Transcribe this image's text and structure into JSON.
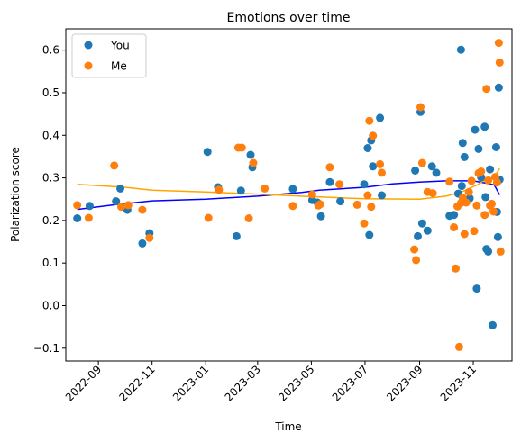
{
  "chart_data": {
    "type": "scatter",
    "title": "Emotions over time",
    "xlabel": "Time",
    "ylabel": "Polarization score",
    "x_type": "date",
    "xlim": [
      "2022-07-26",
      "2023-12-15"
    ],
    "ylim": [
      -0.13,
      0.65
    ],
    "x_ticks": [
      "2022-09-01",
      "2022-11-01",
      "2023-01-01",
      "2023-03-01",
      "2023-05-01",
      "2023-07-01",
      "2023-09-01",
      "2023-11-01"
    ],
    "x_tick_labels": [
      "2022-09",
      "2022-11",
      "2023-01",
      "2023-03",
      "2023-05",
      "2023-07",
      "2023-09",
      "2023-11"
    ],
    "y_ticks": [
      -0.1,
      0.0,
      0.1,
      0.2,
      0.3,
      0.4,
      0.5,
      0.6
    ],
    "y_tick_labels": [
      "−0.1",
      "0.0",
      "0.1",
      "0.2",
      "0.3",
      "0.4",
      "0.5",
      "0.6"
    ],
    "grid": false,
    "legend_position": "top-left",
    "series": [
      {
        "name": "You",
        "color": "#1f77b4",
        "marker": "circle",
        "points": [
          [
            "2022-08-08",
            0.205
          ],
          [
            "2022-08-22",
            0.234
          ],
          [
            "2022-09-21",
            0.245
          ],
          [
            "2022-09-26",
            0.275
          ],
          [
            "2022-10-04",
            0.225
          ],
          [
            "2022-10-21",
            0.146
          ],
          [
            "2022-10-29",
            0.17
          ],
          [
            "2023-01-03",
            0.361
          ],
          [
            "2023-01-15",
            0.278
          ],
          [
            "2023-02-05",
            0.163
          ],
          [
            "2023-02-10",
            0.27
          ],
          [
            "2023-02-21",
            0.354
          ],
          [
            "2023-02-23",
            0.325
          ],
          [
            "2023-04-10",
            0.274
          ],
          [
            "2023-05-02",
            0.248
          ],
          [
            "2023-05-08",
            0.242
          ],
          [
            "2023-05-12",
            0.21
          ],
          [
            "2023-05-22",
            0.29
          ],
          [
            "2023-06-03",
            0.245
          ],
          [
            "2023-06-30",
            0.285
          ],
          [
            "2023-07-04",
            0.37
          ],
          [
            "2023-07-06",
            0.166
          ],
          [
            "2023-07-08",
            0.388
          ],
          [
            "2023-07-10",
            0.327
          ],
          [
            "2023-07-18",
            0.441
          ],
          [
            "2023-07-20",
            0.259
          ],
          [
            "2023-08-27",
            0.317
          ],
          [
            "2023-08-30",
            0.163
          ],
          [
            "2023-09-02",
            0.455
          ],
          [
            "2023-09-04",
            0.193
          ],
          [
            "2023-09-10",
            0.176
          ],
          [
            "2023-09-15",
            0.327
          ],
          [
            "2023-09-20",
            0.312
          ],
          [
            "2023-10-05",
            0.211
          ],
          [
            "2023-10-10",
            0.213
          ],
          [
            "2023-10-15",
            0.263
          ],
          [
            "2023-10-18",
            0.601
          ],
          [
            "2023-10-19",
            0.281
          ],
          [
            "2023-10-20",
            0.382
          ],
          [
            "2023-10-22",
            0.349
          ],
          [
            "2023-10-28",
            0.252
          ],
          [
            "2023-11-03",
            0.413
          ],
          [
            "2023-11-05",
            0.04
          ],
          [
            "2023-11-07",
            0.368
          ],
          [
            "2023-11-10",
            0.301
          ],
          [
            "2023-11-14",
            0.42
          ],
          [
            "2023-11-15",
            0.255
          ],
          [
            "2023-11-16",
            0.133
          ],
          [
            "2023-11-18",
            0.127
          ],
          [
            "2023-11-20",
            0.32
          ],
          [
            "2023-11-23",
            -0.046
          ],
          [
            "2023-11-27",
            0.372
          ],
          [
            "2023-11-28",
            0.22
          ],
          [
            "2023-11-29",
            0.161
          ],
          [
            "2023-11-30",
            0.512
          ],
          [
            "2023-12-01",
            0.296
          ]
        ],
        "trend": [
          [
            "2022-08-08",
            0.226
          ],
          [
            "2022-09-20",
            0.237
          ],
          [
            "2022-11-01",
            0.246
          ],
          [
            "2023-01-01",
            0.25
          ],
          [
            "2023-03-01",
            0.257
          ],
          [
            "2023-04-20",
            0.266
          ],
          [
            "2023-05-10",
            0.271
          ],
          [
            "2023-07-01",
            0.278
          ],
          [
            "2023-08-01",
            0.286
          ],
          [
            "2023-09-01",
            0.29
          ],
          [
            "2023-10-01",
            0.293
          ],
          [
            "2023-11-01",
            0.293
          ],
          [
            "2023-11-20",
            0.286
          ],
          [
            "2023-11-25",
            0.283
          ],
          [
            "2023-12-01",
            0.26
          ]
        ]
      },
      {
        "name": "Me",
        "color": "#ff7f0e",
        "marker": "circle",
        "points": [
          [
            "2022-08-08",
            0.236
          ],
          [
            "2022-08-21",
            0.206
          ],
          [
            "2022-09-19",
            0.329
          ],
          [
            "2022-09-27",
            0.232
          ],
          [
            "2022-10-05",
            0.236
          ],
          [
            "2022-10-21",
            0.225
          ],
          [
            "2022-10-29",
            0.159
          ],
          [
            "2023-01-04",
            0.206
          ],
          [
            "2023-01-16",
            0.272
          ],
          [
            "2023-02-07",
            0.371
          ],
          [
            "2023-02-11",
            0.371
          ],
          [
            "2023-02-19",
            0.205
          ],
          [
            "2023-02-24",
            0.335
          ],
          [
            "2023-03-09",
            0.275
          ],
          [
            "2023-04-10",
            0.234
          ],
          [
            "2023-05-02",
            0.261
          ],
          [
            "2023-05-09",
            0.235
          ],
          [
            "2023-05-11",
            0.238
          ],
          [
            "2023-05-22",
            0.325
          ],
          [
            "2023-06-02",
            0.285
          ],
          [
            "2023-06-22",
            0.237
          ],
          [
            "2023-06-30",
            0.193
          ],
          [
            "2023-07-04",
            0.259
          ],
          [
            "2023-07-06",
            0.434
          ],
          [
            "2023-07-08",
            0.232
          ],
          [
            "2023-07-10",
            0.399
          ],
          [
            "2023-07-18",
            0.332
          ],
          [
            "2023-07-20",
            0.312
          ],
          [
            "2023-08-26",
            0.132
          ],
          [
            "2023-08-28",
            0.107
          ],
          [
            "2023-09-02",
            0.466
          ],
          [
            "2023-09-04",
            0.335
          ],
          [
            "2023-09-10",
            0.267
          ],
          [
            "2023-09-16",
            0.264
          ],
          [
            "2023-10-05",
            0.291
          ],
          [
            "2023-10-10",
            0.184
          ],
          [
            "2023-10-12",
            0.087
          ],
          [
            "2023-10-14",
            0.233
          ],
          [
            "2023-10-16",
            -0.097
          ],
          [
            "2023-10-18",
            0.241
          ],
          [
            "2023-10-20",
            0.253
          ],
          [
            "2023-10-22",
            0.168
          ],
          [
            "2023-10-24",
            0.242
          ],
          [
            "2023-10-27",
            0.267
          ],
          [
            "2023-10-30",
            0.293
          ],
          [
            "2023-11-02",
            0.175
          ],
          [
            "2023-11-05",
            0.235
          ],
          [
            "2023-11-07",
            0.311
          ],
          [
            "2023-11-10",
            0.315
          ],
          [
            "2023-11-14",
            0.213
          ],
          [
            "2023-11-16",
            0.509
          ],
          [
            "2023-11-18",
            0.294
          ],
          [
            "2023-11-20",
            0.235
          ],
          [
            "2023-11-22",
            0.239
          ],
          [
            "2023-11-24",
            0.221
          ],
          [
            "2023-11-26",
            0.302
          ],
          [
            "2023-11-28",
            0.289
          ],
          [
            "2023-11-30",
            0.617
          ],
          [
            "2023-12-01",
            0.571
          ],
          [
            "2023-12-02",
            0.127
          ]
        ],
        "trend": [
          [
            "2022-08-08",
            0.285
          ],
          [
            "2022-10-01",
            0.278
          ],
          [
            "2022-11-01",
            0.271
          ],
          [
            "2023-01-01",
            0.267
          ],
          [
            "2023-03-01",
            0.262
          ],
          [
            "2023-05-01",
            0.256
          ],
          [
            "2023-07-01",
            0.251
          ],
          [
            "2023-09-01",
            0.25
          ],
          [
            "2023-10-01",
            0.257
          ],
          [
            "2023-10-20",
            0.268
          ],
          [
            "2023-11-05",
            0.283
          ],
          [
            "2023-11-15",
            0.296
          ],
          [
            "2023-11-25",
            0.303
          ],
          [
            "2023-12-01",
            0.322
          ]
        ]
      }
    ],
    "trend_colors": {
      "You": "#0000ff",
      "Me": "#ffa500"
    }
  }
}
